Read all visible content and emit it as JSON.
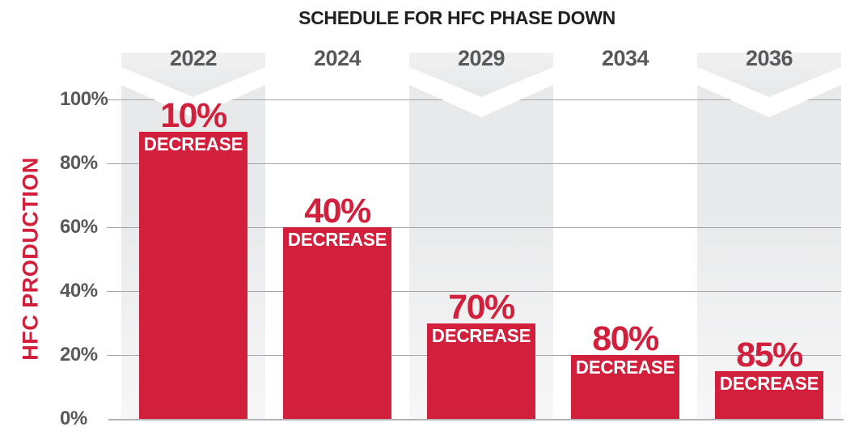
{
  "title": "SCHEDULE FOR HFC PHASE DOWN",
  "y_axis": {
    "label": "HFC PRODUCTION",
    "ticks": [
      "100%",
      "80%",
      "60%",
      "40%",
      "20%",
      "0%"
    ]
  },
  "columns": [
    {
      "year": "2022",
      "value": 90,
      "decrease_label": "10%",
      "decrease_sublabel": "DECREASE",
      "shaded": true
    },
    {
      "year": "2024",
      "value": 60,
      "decrease_label": "40%",
      "decrease_sublabel": "DECREASE",
      "shaded": false
    },
    {
      "year": "2029",
      "value": 30,
      "decrease_label": "70%",
      "decrease_sublabel": "DECREASE",
      "shaded": true
    },
    {
      "year": "2034",
      "value": 20,
      "decrease_label": "80%",
      "decrease_sublabel": "DECREASE",
      "shaded": false
    },
    {
      "year": "2036",
      "value": 15,
      "decrease_label": "85%",
      "decrease_sublabel": "DECREASE",
      "shaded": true
    }
  ],
  "colors": {
    "bar_red": "#d2203c",
    "label_red": "#d2203c",
    "year_gray": "#58595b",
    "title_black": "#231f20",
    "gridline_gray": "#a4a6a9",
    "column_gray": "#e8e9ea",
    "chevron_white": "#ffffff"
  },
  "chart_data": {
    "type": "bar",
    "title": "SCHEDULE FOR HFC PHASE DOWN",
    "xlabel": "",
    "ylabel": "HFC PRODUCTION",
    "categories": [
      "2022",
      "2024",
      "2029",
      "2034",
      "2036"
    ],
    "values": [
      90,
      60,
      30,
      20,
      15
    ],
    "bar_annotations": [
      "10% DECREASE",
      "40% DECREASE",
      "70% DECREASE",
      "80% DECREASE",
      "85% DECREASE"
    ],
    "decrease_percent": [
      10,
      40,
      70,
      80,
      85
    ],
    "ylim": [
      0,
      100
    ],
    "yticks": [
      0,
      20,
      40,
      60,
      80,
      100
    ],
    "ytick_format": "percent",
    "grid": true,
    "legend": false,
    "bar_color": "#d2203c",
    "shaded_columns": [
      "2022",
      "2029",
      "2036"
    ]
  }
}
